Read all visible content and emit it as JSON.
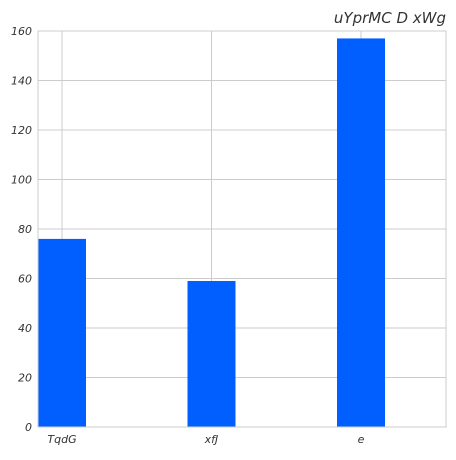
{
  "chart_data": {
    "type": "bar",
    "title": "uYprMC D xWg",
    "xlabel": "",
    "ylabel": "",
    "categories": [
      "TqdG",
      "xfJ",
      "e"
    ],
    "values": [
      76,
      59,
      157
    ],
    "ylim": [
      0,
      160
    ],
    "yticks": [
      0,
      20,
      40,
      60,
      80,
      100,
      120,
      140,
      160
    ],
    "grid": true,
    "bar_color": "#005ffe",
    "grid_color": "#cccccc"
  }
}
